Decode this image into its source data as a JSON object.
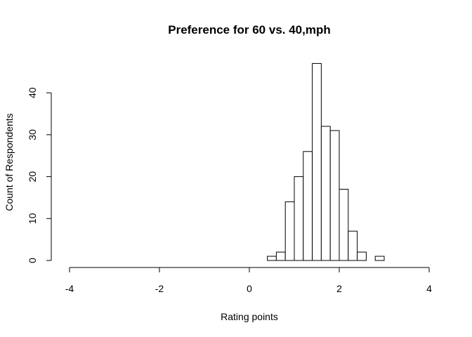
{
  "chart_data": {
    "type": "bar",
    "title": "Preference for 60 vs. 40,mph",
    "xlabel": "Rating points",
    "ylabel": "Count of Respondents",
    "xlim": [
      -4,
      4
    ],
    "ylim": [
      0,
      47
    ],
    "x_ticks": [
      -4,
      -2,
      0,
      2,
      4
    ],
    "y_ticks": [
      0,
      10,
      20,
      30,
      40
    ],
    "bin_width": 0.2,
    "grid": false,
    "legend": "none",
    "bar_fill": "#ffffff",
    "bar_stroke": "#000000",
    "bins": [
      {
        "x0": 0.4,
        "x1": 0.6,
        "count": 1
      },
      {
        "x0": 0.6,
        "x1": 0.8,
        "count": 2
      },
      {
        "x0": 0.8,
        "x1": 1.0,
        "count": 14
      },
      {
        "x0": 1.0,
        "x1": 1.2,
        "count": 20
      },
      {
        "x0": 1.2,
        "x1": 1.4,
        "count": 26
      },
      {
        "x0": 1.4,
        "x1": 1.6,
        "count": 47
      },
      {
        "x0": 1.6,
        "x1": 1.8,
        "count": 32
      },
      {
        "x0": 1.8,
        "x1": 2.0,
        "count": 31
      },
      {
        "x0": 2.0,
        "x1": 2.2,
        "count": 17
      },
      {
        "x0": 2.2,
        "x1": 2.4,
        "count": 7
      },
      {
        "x0": 2.4,
        "x1": 2.6,
        "count": 2
      },
      {
        "x0": 2.6,
        "x1": 2.8,
        "count": 0
      },
      {
        "x0": 2.8,
        "x1": 3.0,
        "count": 1
      }
    ]
  }
}
